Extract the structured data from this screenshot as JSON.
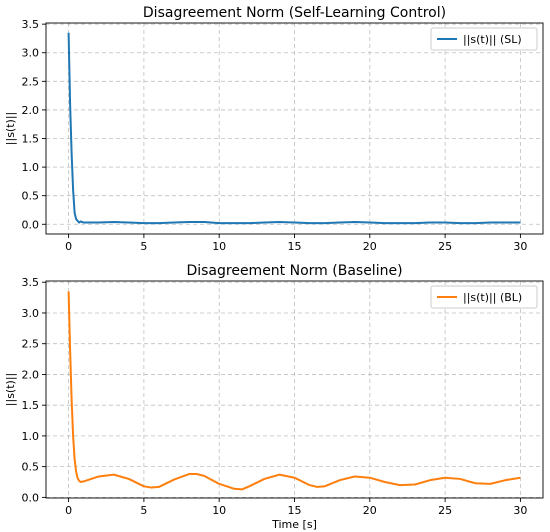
{
  "colors": {
    "sl": "#1f77b4",
    "bl": "#ff7f0e"
  },
  "chart_data": [
    {
      "type": "line",
      "title": "Disagreement Norm (Self-Learning Control)",
      "xlabel": "",
      "ylabel": "||s(t)||",
      "xlim": [
        -1.5,
        31.5
      ],
      "ylim": [
        -0.17,
        3.52
      ],
      "xticks": [
        0,
        5,
        10,
        15,
        20,
        25,
        30
      ],
      "yticks": [
        0.0,
        0.5,
        1.0,
        1.5,
        2.0,
        2.5,
        3.0,
        3.5
      ],
      "xtick_labels": [
        "0",
        "5",
        "10",
        "15",
        "20",
        "25",
        "30"
      ],
      "ytick_labels": [
        "0.0",
        "0.5",
        "1.0",
        "1.5",
        "2.0",
        "2.5",
        "3.0",
        "3.5"
      ],
      "grid": true,
      "legend_position": "top-right",
      "series": [
        {
          "name": "||s(t)|| (SL)",
          "color": "#1f77b4",
          "x": [
            0,
            0.1,
            0.2,
            0.3,
            0.4,
            0.5,
            0.6,
            0.7,
            0.8,
            1.0,
            1.5,
            2,
            3,
            4,
            5,
            5.5,
            6,
            7,
            8,
            8.5,
            9,
            10,
            11,
            11.5,
            12,
            13,
            14,
            15,
            16,
            16.5,
            17,
            18,
            19,
            20,
            21,
            22,
            23,
            24,
            25,
            26,
            27,
            28,
            29,
            30
          ],
          "y": [
            3.35,
            2.1,
            1.25,
            0.6,
            0.2,
            0.09,
            0.06,
            0.03,
            0.05,
            0.03,
            0.03,
            0.03,
            0.04,
            0.03,
            0.02,
            0.02,
            0.02,
            0.03,
            0.04,
            0.04,
            0.04,
            0.02,
            0.02,
            0.02,
            0.02,
            0.03,
            0.04,
            0.03,
            0.02,
            0.02,
            0.02,
            0.03,
            0.04,
            0.03,
            0.02,
            0.02,
            0.02,
            0.03,
            0.03,
            0.02,
            0.02,
            0.03,
            0.03,
            0.03
          ]
        }
      ]
    },
    {
      "type": "line",
      "title": "Disagreement Norm (Baseline)",
      "xlabel": "Time [s]",
      "ylabel": "||s(t)||",
      "xlim": [
        -1.5,
        31.5
      ],
      "ylim": [
        -0.01,
        3.52
      ],
      "xticks": [
        0,
        5,
        10,
        15,
        20,
        25,
        30
      ],
      "yticks": [
        0.0,
        0.5,
        1.0,
        1.5,
        2.0,
        2.5,
        3.0,
        3.5
      ],
      "xtick_labels": [
        "0",
        "5",
        "10",
        "15",
        "20",
        "25",
        "30"
      ],
      "ytick_labels": [
        "0.0",
        "0.5",
        "1.0",
        "1.5",
        "2.0",
        "2.5",
        "3.0",
        "3.5"
      ],
      "grid": true,
      "legend_position": "top-right",
      "series": [
        {
          "name": "||s(t)|| (BL)",
          "color": "#ff7f0e",
          "x": [
            0,
            0.1,
            0.2,
            0.3,
            0.4,
            0.5,
            0.6,
            0.7,
            0.8,
            1.0,
            1.5,
            2,
            3,
            4,
            5,
            5.5,
            6,
            7,
            8,
            8.5,
            9,
            10,
            11,
            11.5,
            12,
            13,
            14,
            15,
            16,
            16.5,
            17,
            18,
            19,
            20,
            21,
            22,
            23,
            24,
            25,
            26,
            27,
            28,
            29,
            30
          ],
          "y": [
            3.35,
            2.4,
            1.6,
            1.0,
            0.62,
            0.42,
            0.31,
            0.27,
            0.25,
            0.26,
            0.3,
            0.34,
            0.37,
            0.3,
            0.18,
            0.16,
            0.17,
            0.29,
            0.38,
            0.38,
            0.35,
            0.22,
            0.14,
            0.13,
            0.18,
            0.3,
            0.37,
            0.32,
            0.2,
            0.17,
            0.18,
            0.28,
            0.34,
            0.32,
            0.25,
            0.2,
            0.21,
            0.28,
            0.32,
            0.3,
            0.23,
            0.22,
            0.28,
            0.32
          ]
        }
      ]
    }
  ]
}
